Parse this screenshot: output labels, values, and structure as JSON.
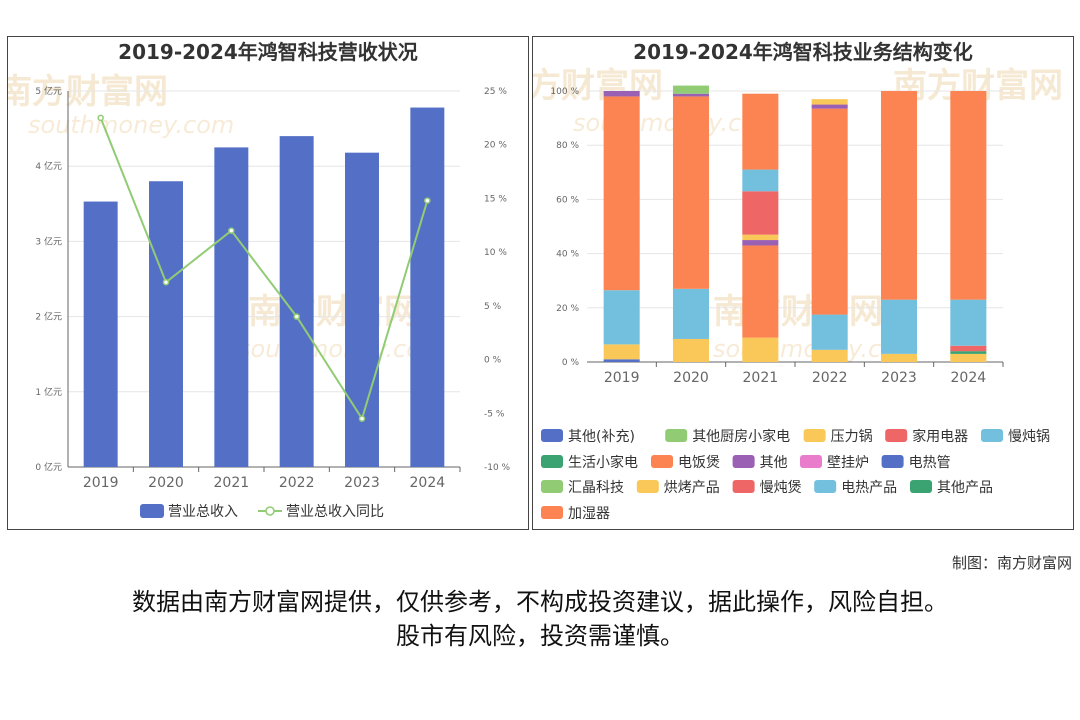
{
  "chart_data": [
    {
      "type": "bar",
      "title": "2019-2024年鸿智科技营收状况",
      "categories": [
        "2019",
        "2020",
        "2021",
        "2022",
        "2023",
        "2024"
      ],
      "series": [
        {
          "name": "营业总收入",
          "type": "bar",
          "axis": "left",
          "values": [
            3.53,
            3.8,
            4.25,
            4.4,
            4.18,
            4.78
          ]
        },
        {
          "name": "营业总收入同比",
          "type": "line",
          "axis": "right",
          "values": [
            22.5,
            7.2,
            12.0,
            4.0,
            -5.5,
            14.8
          ]
        }
      ],
      "y_left": {
        "ticks": [
          "0 亿元",
          "1 亿元",
          "2 亿元",
          "3 亿元",
          "4 亿元",
          "5 亿元"
        ],
        "ylim": [
          0,
          5
        ]
      },
      "y_right": {
        "ticks": [
          "-10 %",
          "-5 %",
          "0 %",
          "5 %",
          "10 %",
          "15 %",
          "20 %",
          "25 %"
        ],
        "ylim": [
          -10,
          25
        ]
      },
      "colors": {
        "bar": "#5470c6",
        "line": "#91cc75"
      },
      "legend_placement": "bottom"
    },
    {
      "type": "bar",
      "stacked": true,
      "title": "2019-2024年鸿智科技业务结构变化",
      "categories": [
        "2019",
        "2020",
        "2021",
        "2022",
        "2023",
        "2024"
      ],
      "y_ticks": [
        "0 %",
        "20 %",
        "40 %",
        "60 %",
        "80 %",
        "100 %"
      ],
      "ylim": [
        0,
        100
      ],
      "series": [
        {
          "name": "其他(补充)",
          "color": "#5470c6",
          "values": [
            1,
            0,
            0,
            0,
            0,
            0
          ]
        },
        {
          "name": "其他厨房小家电",
          "color": "#91cc75",
          "values": [
            0,
            0,
            0,
            0,
            0,
            0
          ]
        },
        {
          "name": "压力锅",
          "color": "#fac858",
          "values": [
            5.5,
            8.5,
            9,
            4.5,
            3,
            3
          ]
        },
        {
          "name": "家用电器",
          "color": "#ee6666",
          "values": [
            0,
            0,
            0,
            0,
            0,
            0
          ]
        },
        {
          "name": "慢炖锅",
          "color": "#73c0de",
          "values": [
            20,
            18.5,
            0,
            13,
            0,
            0
          ]
        },
        {
          "name": "生活小家电",
          "color": "#3ba272",
          "values": [
            0,
            0,
            0,
            0,
            0,
            1
          ]
        },
        {
          "name": "电饭煲",
          "color": "#fc8452",
          "values": [
            71.5,
            71,
            34,
            76,
            0,
            0
          ]
        },
        {
          "name": "其他",
          "color": "#9a60b4",
          "values": [
            2,
            1,
            2,
            1.5,
            0,
            0
          ]
        },
        {
          "name": "壁挂炉",
          "color": "#ea7ccc",
          "values": [
            0,
            0,
            0,
            0,
            0,
            0
          ]
        },
        {
          "name": "电热管",
          "color": "#5470c6",
          "values": [
            0,
            0,
            0,
            0,
            0,
            0
          ]
        },
        {
          "name": "汇晶科技",
          "color": "#91cc75",
          "values": [
            0,
            3,
            0,
            0,
            0,
            0
          ]
        },
        {
          "name": "烘烤产品",
          "color": "#fac858",
          "values": [
            0,
            0,
            2,
            2,
            0,
            0
          ]
        },
        {
          "name": "慢炖煲",
          "color": "#ee6666",
          "values": [
            0,
            0,
            16,
            0,
            0,
            2
          ]
        },
        {
          "name": "电热产品",
          "color": "#73c0de",
          "values": [
            0,
            0,
            8,
            0,
            20,
            17
          ]
        },
        {
          "name": "其他产品",
          "color": "#3ba272",
          "values": [
            0,
            0,
            0,
            0,
            0,
            0
          ]
        },
        {
          "name": "加湿器",
          "color": "#fc8452",
          "values": [
            0,
            0,
            28,
            0,
            77,
            77
          ]
        }
      ],
      "legend_placement": "bottom"
    }
  ],
  "watermark": {
    "text": "南方财富网",
    "sub": "southmoney.com"
  },
  "credit": "制图：南方财富网",
  "disclaimer_line1": "数据由南方财富网提供，仅供参考，不构成投资建议，据此操作，风险自担。",
  "disclaimer_line2": "股市有风险，投资需谨慎。"
}
